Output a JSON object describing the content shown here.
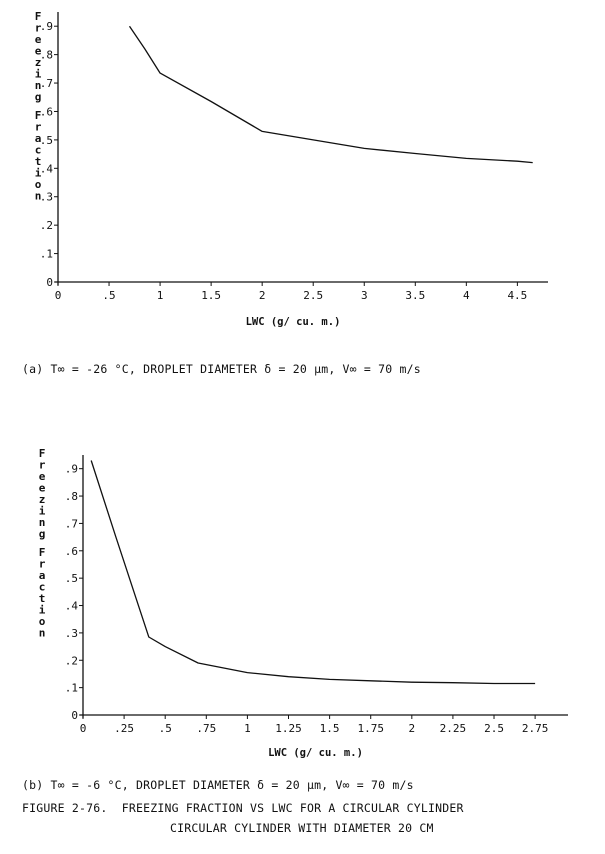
{
  "chart_data": [
    {
      "type": "line",
      "ylabel": "Freezing Fraction",
      "xlabel": "LWC (g/ cu. m.)",
      "xlim": [
        0,
        4.8
      ],
      "ylim": [
        0,
        0.95
      ],
      "x_ticks": [
        "0",
        ".5",
        "1",
        "1.5",
        "2",
        "2.5",
        "3",
        "3.5",
        "4",
        "4.5"
      ],
      "y_ticks": [
        "0",
        ".1",
        ".2",
        ".3",
        ".4",
        ".5",
        ".6",
        ".7",
        ".8",
        ".9"
      ],
      "series": [
        {
          "x": [
            0.7,
            0.85,
            1.0,
            1.5,
            2.0,
            2.5,
            3.0,
            3.5,
            4.0,
            4.5,
            4.65
          ],
          "y": [
            0.9,
            0.82,
            0.735,
            0.635,
            0.53,
            0.5,
            0.47,
            0.452,
            0.435,
            0.425,
            0.42
          ]
        }
      ],
      "caption": "(a) T∞ = -26 °C, DROPLET DIAMETER δ = 20 μm, V∞ = 70 m/s"
    },
    {
      "type": "line",
      "ylabel": "Freezing Fraction",
      "xlabel": "LWC (g/ cu. m.)",
      "xlim": [
        0,
        2.95
      ],
      "ylim": [
        0,
        0.95
      ],
      "x_ticks": [
        "0",
        ".25",
        ".5",
        ".75",
        "1",
        "1.25",
        "1.5",
        "1.75",
        "2",
        "2.25",
        "2.5",
        "2.75"
      ],
      "y_ticks": [
        "0",
        ".1",
        ".2",
        ".3",
        ".4",
        ".5",
        ".6",
        ".7",
        ".8",
        ".9"
      ],
      "series": [
        {
          "x": [
            0.05,
            0.2,
            0.4,
            0.5,
            0.7,
            1.0,
            1.25,
            1.5,
            1.75,
            2.0,
            2.25,
            2.5,
            2.75
          ],
          "y": [
            0.93,
            0.65,
            0.285,
            0.25,
            0.19,
            0.155,
            0.14,
            0.13,
            0.125,
            0.12,
            0.118,
            0.115,
            0.115
          ]
        }
      ],
      "caption": "(b) T∞ = -6 °C, DROPLET DIAMETER δ = 20 μm, V∞ = 70 m/s"
    }
  ],
  "figure": {
    "title": "FIGURE 2-76.  FREEZING FRACTION VS LWC FOR A CIRCULAR CYLINDER",
    "subtitle": "CIRCULAR CYLINDER WITH DIAMETER 20 CM"
  }
}
